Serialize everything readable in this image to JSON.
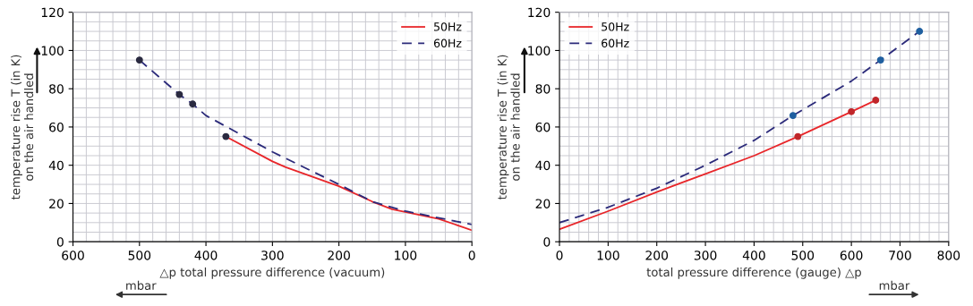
{
  "chart_data": [
    {
      "type": "line",
      "xlabel": "△p total pressure difference (vacuum)",
      "ylabel": "temperature rise T (in K)\non the air handled",
      "annotations": [
        "mbar"
      ],
      "xlim": [
        600,
        0
      ],
      "xticks": [
        600,
        500,
        400,
        300,
        200,
        100,
        0
      ],
      "ylim": [
        0,
        120
      ],
      "yticks": [
        0,
        20,
        40,
        60,
        80,
        100,
        120
      ],
      "grid": true,
      "legend": "top right",
      "series": [
        {
          "name": "50Hz",
          "color": "#e8262a",
          "line_style": "solid",
          "x": [
            370,
            300,
            280,
            200,
            150,
            120,
            50,
            0
          ],
          "values": [
            55,
            42,
            39,
            29,
            21,
            17,
            12,
            6
          ]
        },
        {
          "name": "60Hz",
          "color": "#2b2a7a",
          "line_style": "dashed",
          "x": [
            500,
            440,
            420,
            400,
            300,
            200,
            150,
            100,
            0
          ],
          "values": [
            95,
            77,
            72,
            66,
            47,
            30,
            21,
            16,
            9
          ]
        },
        {
          "type": "scatter",
          "color": "#2a2a40",
          "marker": "circle",
          "x": [
            500,
            440,
            420,
            370
          ],
          "values": [
            95,
            77,
            72,
            55
          ]
        }
      ]
    },
    {
      "type": "line",
      "xlabel": "total pressure difference (gauge) △p",
      "ylabel": "temperature rise T (in K)\non the air handled",
      "annotations": [
        "mbar"
      ],
      "xlim": [
        0,
        800
      ],
      "xticks": [
        0,
        100,
        200,
        300,
        400,
        500,
        600,
        700,
        800
      ],
      "ylim": [
        0,
        120
      ],
      "yticks": [
        0,
        20,
        40,
        60,
        80,
        100,
        120
      ],
      "grid": true,
      "legend": "top left",
      "series": [
        {
          "name": "50Hz",
          "color": "#e8262a",
          "line_style": "solid",
          "x": [
            0,
            100,
            200,
            300,
            400,
            490,
            600,
            650
          ],
          "values": [
            6.5,
            16,
            26,
            35.5,
            45,
            55,
            68,
            74
          ]
        },
        {
          "name": "60Hz",
          "color": "#2b2a7a",
          "line_style": "dashed",
          "x": [
            0,
            100,
            200,
            300,
            400,
            480,
            600,
            660,
            740
          ],
          "values": [
            10,
            18,
            28,
            40,
            53,
            66,
            84,
            95,
            110
          ]
        },
        {
          "type": "scatter",
          "color": "#1f5fa0",
          "marker": "circle",
          "x": [
            480,
            660,
            740
          ],
          "values": [
            66,
            95,
            110
          ]
        },
        {
          "type": "scatter",
          "color": "#c0262a",
          "marker": "circle",
          "x": [
            490,
            600,
            650
          ],
          "values": [
            55,
            68,
            74
          ]
        }
      ]
    }
  ]
}
